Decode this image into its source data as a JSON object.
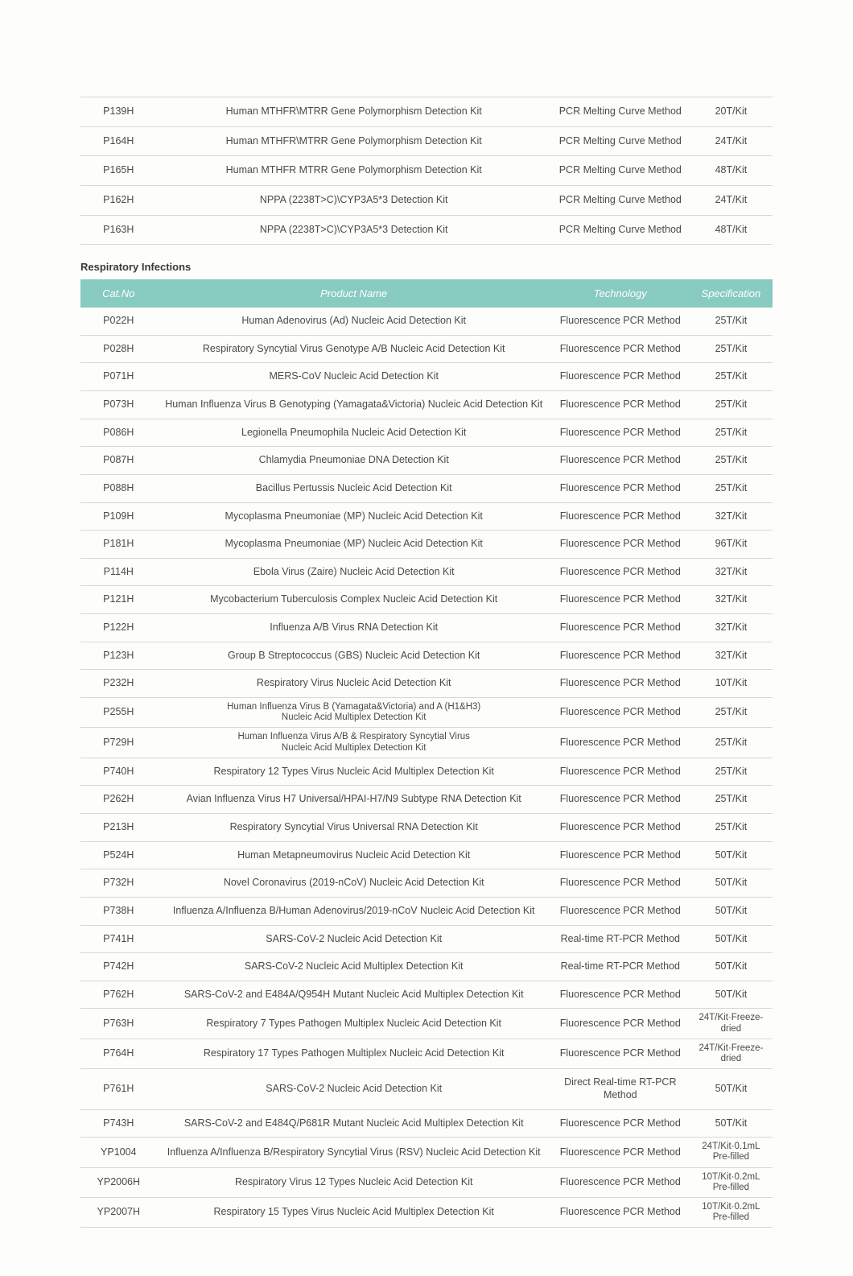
{
  "top_table": {
    "rows": [
      {
        "cat": "P139H",
        "name": "Human MTHFR\\MTRR Gene Polymorphism Detection Kit",
        "tech": "PCR Melting Curve Method",
        "spec": "20T/Kit"
      },
      {
        "cat": "P164H",
        "name": "Human MTHFR\\MTRR Gene Polymorphism Detection Kit",
        "tech": "PCR Melting Curve Method",
        "spec": "24T/Kit"
      },
      {
        "cat": "P165H",
        "name": "Human MTHFR MTRR Gene Polymorphism Detection Kit",
        "tech": "PCR Melting Curve Method",
        "spec": "48T/Kit"
      },
      {
        "cat": "P162H",
        "name": "NPPA (2238T>C)\\CYP3A5*3 Detection Kit",
        "tech": "PCR Melting Curve Method",
        "spec": "24T/Kit"
      },
      {
        "cat": "P163H",
        "name": "NPPA (2238T>C)\\CYP3A5*3 Detection Kit",
        "tech": "PCR Melting Curve Method",
        "spec": "48T/Kit"
      }
    ]
  },
  "section_title": "Respiratory Infections",
  "headers": {
    "cat": "Cat.No",
    "name": "Product Name",
    "tech": "Technology",
    "spec": "Specification"
  },
  "main_table": {
    "rows": [
      {
        "cat": "P022H",
        "name": "Human Adenovirus (Ad) Nucleic Acid Detection Kit",
        "tech": "Fluorescence PCR Method",
        "spec": "25T/Kit"
      },
      {
        "cat": "P028H",
        "name": "Respiratory Syncytial Virus Genotype A/B Nucleic Acid Detection Kit",
        "tech": "Fluorescence PCR Method",
        "spec": "25T/Kit"
      },
      {
        "cat": "P071H",
        "name": "MERS-CoV Nucleic Acid Detection Kit",
        "tech": "Fluorescence PCR Method",
        "spec": "25T/Kit"
      },
      {
        "cat": "P073H",
        "name": "Human Influenza Virus B Genotyping (Yamagata&Victoria) Nucleic Acid Detection Kit",
        "tech": "Fluorescence PCR Method",
        "spec": "25T/Kit"
      },
      {
        "cat": "P086H",
        "name": "Legionella Pneumophila Nucleic Acid Detection Kit",
        "tech": "Fluorescence PCR Method",
        "spec": "25T/Kit"
      },
      {
        "cat": "P087H",
        "name": "Chlamydia Pneumoniae DNA Detection Kit",
        "tech": "Fluorescence PCR Method",
        "spec": "25T/Kit"
      },
      {
        "cat": "P088H",
        "name": "Bacillus Pertussis Nucleic Acid Detection Kit",
        "tech": "Fluorescence PCR Method",
        "spec": "25T/Kit"
      },
      {
        "cat": "P109H",
        "name": "Mycoplasma Pneumoniae (MP) Nucleic Acid Detection Kit",
        "tech": "Fluorescence PCR Method",
        "spec": "32T/Kit"
      },
      {
        "cat": "P181H",
        "name": "Mycoplasma Pneumoniae (MP) Nucleic Acid Detection Kit",
        "tech": "Fluorescence PCR Method",
        "spec": "96T/Kit"
      },
      {
        "cat": "P114H",
        "name": "Ebola Virus (Zaire) Nucleic Acid Detection Kit",
        "tech": "Fluorescence PCR Method",
        "spec": "32T/Kit"
      },
      {
        "cat": "P121H",
        "name": "Mycobacterium Tuberculosis Complex Nucleic Acid Detection Kit",
        "tech": "Fluorescence PCR Method",
        "spec": "32T/Kit"
      },
      {
        "cat": "P122H",
        "name": "Influenza A/B Virus RNA Detection Kit",
        "tech": "Fluorescence PCR Method",
        "spec": "32T/Kit"
      },
      {
        "cat": "P123H",
        "name": "Group B Streptococcus (GBS) Nucleic Acid Detection Kit",
        "tech": "Fluorescence PCR Method",
        "spec": "32T/Kit"
      },
      {
        "cat": "P232H",
        "name": "Respiratory Virus Nucleic Acid Detection Kit",
        "tech": "Fluorescence PCR Method",
        "spec": "10T/Kit"
      },
      {
        "cat": "P255H",
        "name": "Human Influenza Virus B (Yamagata&Victoria) and A (H1&H3)\nNucleic Acid Multiplex Detection Kit",
        "tech": "Fluorescence PCR Method",
        "spec": "25T/Kit",
        "small": true
      },
      {
        "cat": "P729H",
        "name": "Human Influenza Virus A/B & Respiratory Syncytial Virus\nNucleic Acid Multiplex Detection Kit",
        "tech": "Fluorescence PCR Method",
        "spec": "25T/Kit",
        "small": true
      },
      {
        "cat": "P740H",
        "name": "Respiratory 12 Types Virus Nucleic Acid Multiplex Detection Kit",
        "tech": "Fluorescence PCR Method",
        "spec": "25T/Kit"
      },
      {
        "cat": "P262H",
        "name": "Avian Influenza Virus H7 Universal/HPAI-H7/N9 Subtype RNA Detection Kit",
        "tech": "Fluorescence PCR Method",
        "spec": "25T/Kit"
      },
      {
        "cat": "P213H",
        "name": "Respiratory Syncytial Virus Universal RNA Detection Kit",
        "tech": "Fluorescence PCR Method",
        "spec": "25T/Kit"
      },
      {
        "cat": "P524H",
        "name": "Human Metapneumovirus Nucleic Acid Detection Kit",
        "tech": "Fluorescence PCR Method",
        "spec": "50T/Kit"
      },
      {
        "cat": "P732H",
        "name": "Novel Coronavirus (2019-nCoV) Nucleic Acid Detection Kit",
        "tech": "Fluorescence PCR Method",
        "spec": "50T/Kit"
      },
      {
        "cat": "P738H",
        "name": "Influenza A/Influenza B/Human Adenovirus/2019-nCoV Nucleic Acid Detection Kit",
        "tech": "Fluorescence PCR Method",
        "spec": "50T/Kit"
      },
      {
        "cat": "P741H",
        "name": "SARS-CoV-2 Nucleic Acid Detection Kit",
        "tech": "Real-time RT-PCR Method",
        "spec": "50T/Kit"
      },
      {
        "cat": "P742H",
        "name": "SARS-CoV-2 Nucleic Acid Multiplex Detection Kit",
        "tech": "Real-time RT-PCR Method",
        "spec": "50T/Kit"
      },
      {
        "cat": "P762H",
        "name": "SARS-CoV-2 and E484A/Q954H Mutant Nucleic Acid Multiplex Detection Kit",
        "tech": "Fluorescence PCR Method",
        "spec": "50T/Kit"
      },
      {
        "cat": "P763H",
        "name": "Respiratory 7 Types Pathogen Multiplex Nucleic Acid Detection Kit",
        "tech": "Fluorescence PCR Method",
        "spec": "24T/Kit·Freeze-\ndried",
        "small_spec": true
      },
      {
        "cat": "P764H",
        "name": "Respiratory 17 Types Pathogen Multiplex Nucleic Acid Detection Kit",
        "tech": "Fluorescence PCR Method",
        "spec": "24T/Kit·Freeze-\ndried",
        "small_spec": true
      },
      {
        "cat": "P761H",
        "name": "SARS-CoV-2 Nucleic Acid Detection Kit",
        "tech": "Direct Real-time RT-PCR Method",
        "spec": "50T/Kit"
      },
      {
        "cat": "P743H",
        "name": "SARS-CoV-2 and E484Q/P681R Mutant Nucleic Acid Multiplex Detection Kit",
        "tech": "Fluorescence PCR Method",
        "spec": "50T/Kit"
      },
      {
        "cat": "YP1004",
        "name": "Influenza A/Influenza B/Respiratory Syncytial Virus (RSV) Nucleic Acid Detection Kit",
        "tech": "Fluorescence PCR Method",
        "spec": "24T/Kit·0.1mL\nPre-filled",
        "small_spec": true
      },
      {
        "cat": "YP2006H",
        "name": "Respiratory Virus 12 Types Nucleic Acid Detection Kit",
        "tech": "Fluorescence PCR Method",
        "spec": "10T/Kit·0.2mL\nPre-filled",
        "small_spec": true
      },
      {
        "cat": "YP2007H",
        "name": "Respiratory 15 Types Virus Nucleic Acid Multiplex Detection Kit",
        "tech": "Fluorescence PCR Method",
        "spec": "10T/Kit·0.2mL\nPre-filled",
        "small_spec": true
      }
    ]
  },
  "colors": {
    "header_bg": "#88cbc0",
    "header_text": "#ffffff",
    "row_border": "#d8d8d2",
    "body_text": "#4a4a4a",
    "page_bg": "#fdfdfb"
  }
}
